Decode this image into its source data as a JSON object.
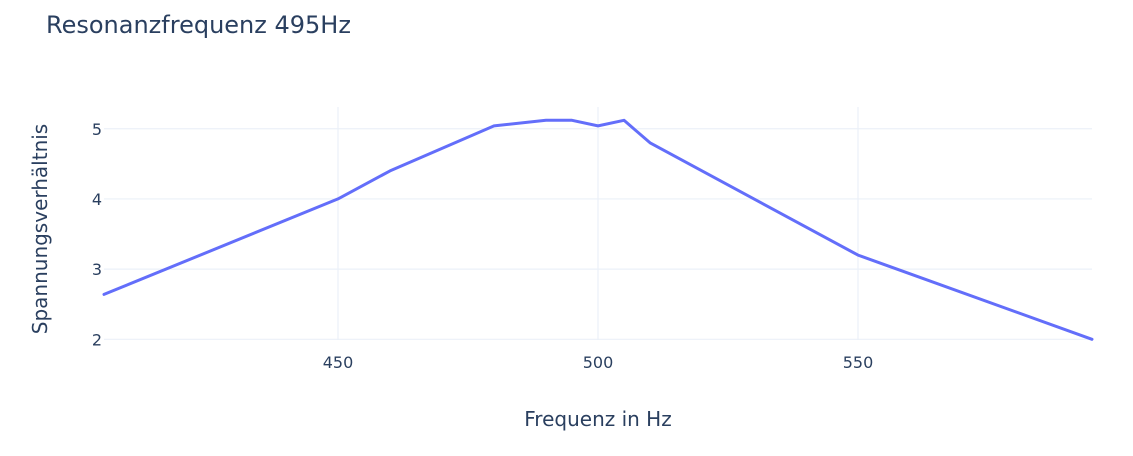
{
  "chart_data": {
    "type": "line",
    "title": "Resonanzfrequenz 495Hz",
    "xlabel": "Frequenz in Hz",
    "ylabel": "Spannungsverhältnis",
    "xlim": [
      405,
      595
    ],
    "ylim": [
      1.99,
      5.31
    ],
    "x_ticks": [
      450,
      500,
      550
    ],
    "y_ticks": [
      2,
      3,
      4,
      5
    ],
    "grid": true,
    "colors": {
      "line": "#636efa",
      "grid": "#ebf0f8",
      "text": "#2a3f5f"
    },
    "series": [
      {
        "x": [
          405,
          450,
          460,
          480,
          490,
          495,
          500,
          505,
          510,
          550,
          595
        ],
        "y": [
          2.64,
          4.0,
          4.4,
          5.04,
          5.12,
          5.12,
          5.04,
          5.12,
          4.8,
          3.2,
          2.0
        ]
      }
    ]
  }
}
